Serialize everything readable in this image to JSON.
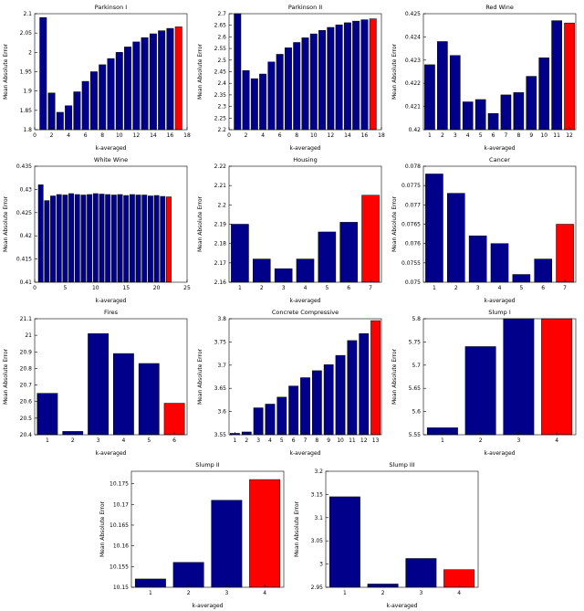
{
  "figure": {
    "bar_color": "#00008b",
    "highlight_color": "#ff0000",
    "edge_color": "#000000",
    "background": "#ffffff"
  },
  "chart_data": [
    {
      "type": "bar",
      "title": "Parkinson I",
      "slug": "parkinson-i",
      "xlabel": "k-averaged",
      "ylabel": "Mean Absolute Error",
      "xlim": [
        0,
        18
      ],
      "xticks": [
        0,
        2,
        4,
        6,
        8,
        10,
        12,
        14,
        16,
        18
      ],
      "ylim": [
        1.8,
        2.1
      ],
      "yticks": [
        1.8,
        1.85,
        1.9,
        1.95,
        2,
        2.05,
        2.1
      ],
      "values": [
        2.09,
        1.895,
        1.845,
        1.862,
        1.898,
        1.925,
        1.95,
        1.968,
        1.984,
        2.0,
        2.014,
        2.027,
        2.038,
        2.048,
        2.056,
        2.062,
        2.066
      ],
      "red_index": 16
    },
    {
      "type": "bar",
      "title": "Parkinson II",
      "slug": "parkinson-ii",
      "xlabel": "k-averaged",
      "ylabel": "Mean Absolute Error",
      "xlim": [
        0,
        18
      ],
      "xticks": [
        0,
        2,
        4,
        6,
        8,
        10,
        12,
        14,
        16,
        18
      ],
      "ylim": [
        2.2,
        2.7
      ],
      "yticks": [
        2.2,
        2.25,
        2.3,
        2.35,
        2.4,
        2.45,
        2.5,
        2.55,
        2.6,
        2.65,
        2.7
      ],
      "values": [
        2.7,
        2.455,
        2.42,
        2.44,
        2.492,
        2.525,
        2.553,
        2.576,
        2.596,
        2.613,
        2.628,
        2.641,
        2.652,
        2.661,
        2.668,
        2.674,
        2.678
      ],
      "red_index": 16
    },
    {
      "type": "bar",
      "title": "Red Wine",
      "slug": "red-wine",
      "xlabel": "k-averaged",
      "ylabel": "Mean Absolute Error",
      "xlim": [
        0.5,
        12.5
      ],
      "xticks": [
        1,
        2,
        3,
        4,
        5,
        6,
        7,
        8,
        9,
        10,
        11,
        12
      ],
      "ylim": [
        0.42,
        0.425
      ],
      "yticks": [
        0.42,
        0.421,
        0.422,
        0.423,
        0.424,
        0.425
      ],
      "values": [
        0.4228,
        0.4238,
        0.4232,
        0.4212,
        0.4213,
        0.4207,
        0.4215,
        0.4216,
        0.4223,
        0.4231,
        0.4247,
        0.4246
      ],
      "red_index": 11
    },
    {
      "type": "bar",
      "title": "White Wine",
      "slug": "white-wine",
      "xlabel": "k-averaged",
      "ylabel": "Mean Absolute Error",
      "xlim": [
        0,
        25
      ],
      "xticks": [
        0,
        5,
        10,
        15,
        20,
        25
      ],
      "ylim": [
        0.41,
        0.435
      ],
      "yticks": [
        0.41,
        0.415,
        0.42,
        0.425,
        0.43,
        0.435
      ],
      "values": [
        0.431,
        0.4276,
        0.4286,
        0.4289,
        0.4288,
        0.4291,
        0.4289,
        0.4288,
        0.4289,
        0.4291,
        0.429,
        0.4289,
        0.4288,
        0.4289,
        0.4287,
        0.4289,
        0.4288,
        0.4288,
        0.4286,
        0.4287,
        0.4285,
        0.4284
      ],
      "red_index": 21
    },
    {
      "type": "bar",
      "title": "Housing",
      "slug": "housing",
      "xlabel": "k-averaged",
      "ylabel": "Mean Absolute Error",
      "xlim": [
        0.5,
        7.5
      ],
      "xticks": [
        1,
        2,
        3,
        4,
        5,
        6,
        7
      ],
      "ylim": [
        2.16,
        2.22
      ],
      "yticks": [
        2.16,
        2.17,
        2.18,
        2.19,
        2.2,
        2.21,
        2.22
      ],
      "values": [
        2.19,
        2.172,
        2.167,
        2.172,
        2.186,
        2.191,
        2.205
      ],
      "red_index": 6
    },
    {
      "type": "bar",
      "title": "Cancer",
      "slug": "cancer",
      "xlabel": "k-averaged",
      "ylabel": "Mean Absolute Error",
      "xlim": [
        0.5,
        7.5
      ],
      "xticks": [
        1,
        2,
        3,
        4,
        5,
        6,
        7
      ],
      "ylim": [
        0.075,
        0.078
      ],
      "yticks": [
        0.075,
        0.0755,
        0.076,
        0.0765,
        0.077,
        0.0775,
        0.078
      ],
      "values": [
        0.0778,
        0.0773,
        0.0762,
        0.076,
        0.0752,
        0.0756,
        0.0765
      ],
      "red_index": 6
    },
    {
      "type": "bar",
      "title": "Fires",
      "slug": "fires",
      "xlabel": "k-averaged",
      "ylabel": "Mean Absolute Error",
      "xlim": [
        0.5,
        6.5
      ],
      "xticks": [
        1,
        2,
        3,
        4,
        5,
        6
      ],
      "ylim": [
        20.4,
        21.1
      ],
      "yticks": [
        20.4,
        20.5,
        20.6,
        20.7,
        20.8,
        20.9,
        21,
        21.1
      ],
      "values": [
        20.65,
        20.42,
        21.01,
        20.89,
        20.83,
        20.59
      ],
      "red_index": 5
    },
    {
      "type": "bar",
      "title": "Concrete Compressive",
      "slug": "concrete-compressive",
      "xlabel": "k-averaged",
      "ylabel": "Mean Absolute Error",
      "xlim": [
        0.5,
        13.5
      ],
      "xticks": [
        1,
        2,
        3,
        4,
        5,
        6,
        7,
        8,
        9,
        10,
        11,
        12,
        13
      ],
      "ylim": [
        3.55,
        3.8
      ],
      "yticks": [
        3.55,
        3.6,
        3.65,
        3.7,
        3.75,
        3.8
      ],
      "values": [
        3.553,
        3.556,
        3.608,
        3.616,
        3.631,
        3.655,
        3.673,
        3.688,
        3.701,
        3.721,
        3.753,
        3.768,
        3.796
      ],
      "red_index": 12
    },
    {
      "type": "bar",
      "title": "Slump I",
      "slug": "slump-i",
      "xlabel": "k-averaged",
      "ylabel": "Mean Absolute Error",
      "xlim": [
        0.5,
        4.5
      ],
      "xticks": [
        1,
        2,
        3,
        4
      ],
      "ylim": [
        5.55,
        5.8
      ],
      "yticks": [
        5.55,
        5.6,
        5.65,
        5.7,
        5.75,
        5.8
      ],
      "values": [
        5.565,
        5.74,
        5.812,
        5.8
      ],
      "red_index": 3
    },
    {
      "type": "bar",
      "title": "Slump II",
      "slug": "slump-ii",
      "xlabel": "k-averaged",
      "ylabel": "Mean Absolute Error",
      "xlim": [
        0.5,
        4.5
      ],
      "xticks": [
        1,
        2,
        3,
        4
      ],
      "ylim": [
        10.15,
        10.178
      ],
      "yticks": [
        10.15,
        10.155,
        10.16,
        10.165,
        10.17,
        10.175
      ],
      "values": [
        10.152,
        10.156,
        10.171,
        10.176
      ],
      "red_index": 3
    },
    {
      "type": "bar",
      "title": "Slump III",
      "slug": "slump-iii",
      "xlabel": "k-averaged",
      "ylabel": "Mean Absolute Error",
      "xlim": [
        0.5,
        4.5
      ],
      "xticks": [
        1,
        2,
        3,
        4
      ],
      "ylim": [
        2.95,
        3.2
      ],
      "yticks": [
        2.95,
        3,
        3.05,
        3.1,
        3.15,
        3.2
      ],
      "values": [
        3.145,
        2.957,
        3.012,
        2.988
      ],
      "red_index": 3
    }
  ]
}
